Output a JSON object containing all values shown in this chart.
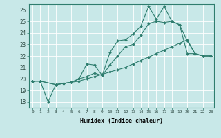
{
  "xlabel": "Humidex (Indice chaleur)",
  "background_color": "#c8e8e8",
  "grid_color": "#ffffff",
  "line_color": "#2e7d6e",
  "xlim": [
    -0.5,
    23.5
  ],
  "ylim": [
    17.5,
    26.5
  ],
  "yticks": [
    18,
    19,
    20,
    21,
    22,
    23,
    24,
    25,
    26
  ],
  "xticks": [
    0,
    1,
    2,
    3,
    4,
    5,
    6,
    7,
    8,
    9,
    10,
    11,
    12,
    13,
    14,
    15,
    16,
    17,
    18,
    19,
    20,
    21,
    22,
    23
  ],
  "series": [
    {
      "x": [
        0,
        1,
        2,
        3,
        4,
        5,
        6,
        7,
        8,
        9,
        10,
        11,
        12,
        13,
        14,
        15,
        16,
        17,
        18,
        19,
        20,
        21,
        22,
        23
      ],
      "y": [
        19.8,
        19.8,
        18.0,
        19.5,
        19.6,
        19.7,
        20.0,
        21.3,
        21.2,
        20.3,
        22.3,
        23.3,
        23.4,
        23.9,
        24.6,
        26.3,
        25.2,
        26.3,
        25.0,
        24.7,
        22.2,
        22.2,
        22.0,
        22.0
      ]
    },
    {
      "x": [
        0,
        1,
        3,
        4,
        5,
        6,
        7,
        8,
        9,
        10,
        11,
        12,
        13,
        14,
        15,
        16,
        17,
        18,
        19,
        20,
        21,
        22,
        23
      ],
      "y": [
        19.8,
        19.8,
        19.5,
        19.6,
        19.7,
        20.0,
        20.2,
        20.5,
        20.3,
        21.2,
        22.0,
        22.8,
        23.0,
        23.8,
        24.8,
        25.0,
        24.9,
        25.0,
        24.7,
        23.3,
        22.2,
        22.0,
        22.0
      ]
    },
    {
      "x": [
        0,
        1,
        3,
        4,
        5,
        6,
        7,
        8,
        9,
        10,
        11,
        12,
        13,
        14,
        15,
        16,
        17,
        18,
        19,
        20,
        21,
        22,
        23
      ],
      "y": [
        19.8,
        19.8,
        19.5,
        19.6,
        19.7,
        19.8,
        20.0,
        20.2,
        20.4,
        20.6,
        20.8,
        21.0,
        21.3,
        21.6,
        21.9,
        22.2,
        22.5,
        22.8,
        23.1,
        23.4,
        22.2,
        22.0,
        22.0
      ]
    }
  ]
}
